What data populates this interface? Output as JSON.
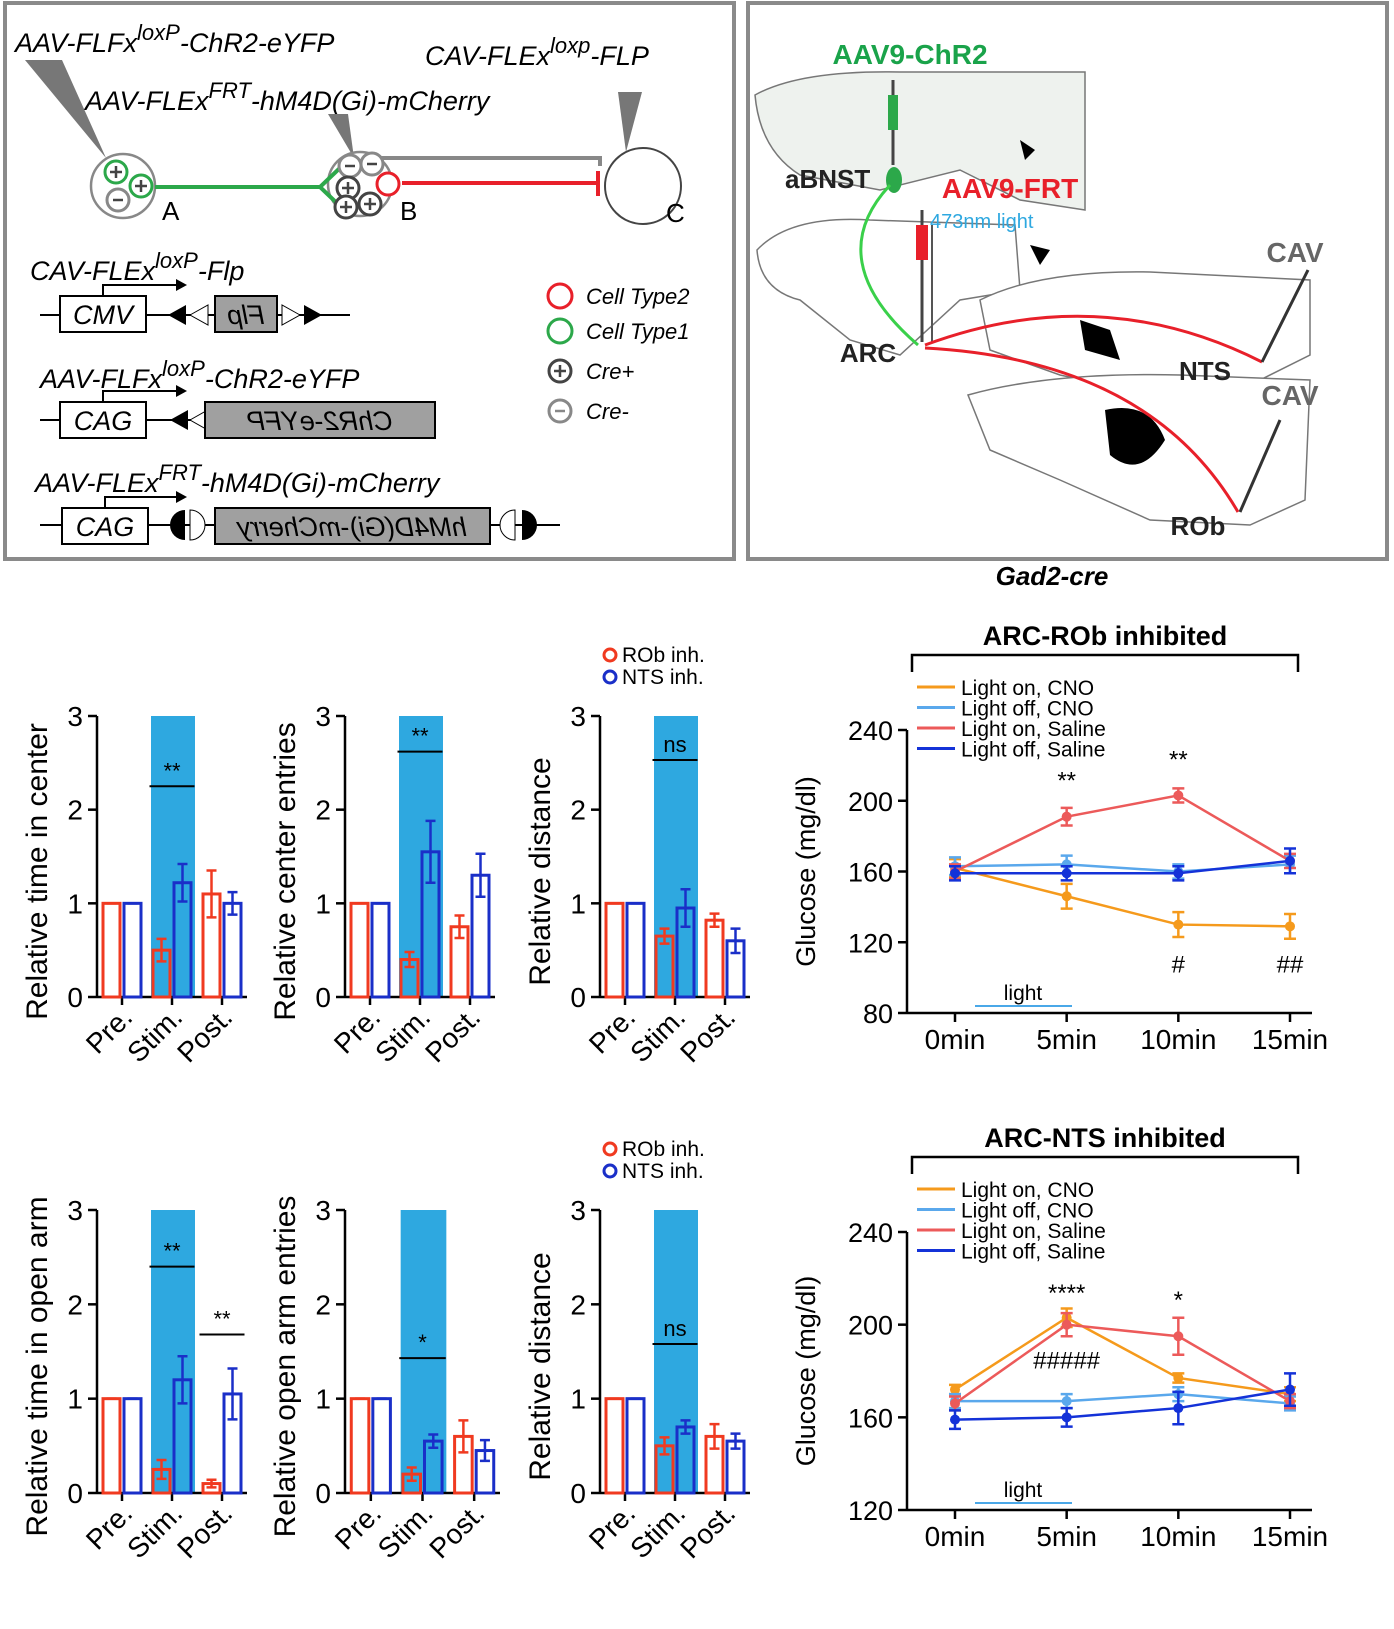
{
  "diagram": {
    "top_labels": [
      {
        "base": "AAV-FLFx",
        "sup": "loxP",
        "rest": "-ChR2-eYFP"
      },
      {
        "base": "CAV-FLEx",
        "sup": "loxp",
        "rest": "-FLP"
      },
      {
        "base": "AAV-FLEx",
        "sup": "FRT",
        "rest": "-hM4D(Gi)-mCherry"
      }
    ],
    "nodes": [
      "A",
      "B",
      "C"
    ],
    "constructs": [
      {
        "title": {
          "base": "CAV-FLEx",
          "sup": "loxP",
          "rest": "-Flp"
        },
        "promoter": "CMV",
        "gene": "Flp"
      },
      {
        "title": {
          "base": "AAV-FLFx",
          "sup": "loxP",
          "rest": "-ChR2-eYFP"
        },
        "promoter": "CAG",
        "gene": "ChR2-eYFP"
      },
      {
        "title": {
          "base": "AAV-FLEx",
          "sup": "FRT",
          "rest": "-hM4D(Gi)-mCherry"
        },
        "promoter": "CAG",
        "gene": "hM4D(Gi)-mCherry"
      }
    ],
    "legend": [
      "Cell Type2",
      "Cell Type1",
      "Cre+",
      "Cre-"
    ],
    "brain": {
      "aav_chr2": "AAV9-ChR2",
      "abnst": "aBNST",
      "aav_frt": "AAV9-FRT",
      "light": "473nm light",
      "cav": [
        "CAV",
        "CAV"
      ],
      "arc": "ARC",
      "nts": "NTS",
      "rob": "ROb"
    },
    "mouse_line": "Gad2-cre"
  },
  "chart_data": [
    {
      "type": "bar",
      "y_label": "Relative time in center",
      "categories": [
        "Pre.",
        "Stim.",
        "Post."
      ],
      "highlight": "Stim.",
      "ylim": [
        0,
        3
      ],
      "yticks": [
        0,
        1,
        2,
        3
      ],
      "legend": false,
      "series": [
        {
          "color": "#f03a20",
          "values": [
            1,
            0.5,
            1.1
          ],
          "errors": [
            0,
            0.12,
            0.25
          ]
        },
        {
          "color": "#1a2fc8",
          "values": [
            1,
            1.22,
            1.0
          ],
          "errors": [
            0,
            0.2,
            0.12
          ]
        }
      ],
      "annotations": [
        {
          "text": "**",
          "x": "Stim.",
          "y": 2.25
        }
      ]
    },
    {
      "type": "bar",
      "y_label": "Relative center entries",
      "categories": [
        "Pre.",
        "Stim.",
        "Post."
      ],
      "highlight": "Stim.",
      "ylim": [
        0,
        3
      ],
      "yticks": [
        0,
        1,
        2,
        3
      ],
      "legend": false,
      "series": [
        {
          "color": "#f03a20",
          "values": [
            1,
            0.4,
            0.75
          ],
          "errors": [
            0,
            0.08,
            0.12
          ]
        },
        {
          "color": "#1a2fc8",
          "values": [
            1,
            1.55,
            1.3
          ],
          "errors": [
            0,
            0.33,
            0.23
          ]
        }
      ],
      "annotations": [
        {
          "text": "**",
          "x": "Stim.",
          "y": 2.62
        }
      ]
    },
    {
      "type": "bar",
      "y_label": "Relative distance",
      "categories": [
        "Pre.",
        "Stim.",
        "Post."
      ],
      "highlight": "Stim.",
      "ylim": [
        0,
        3
      ],
      "yticks": [
        0,
        1,
        2,
        3
      ],
      "legend": true,
      "series": [
        {
          "name": "ROb inh.",
          "color": "#f03a20",
          "values": [
            1,
            0.65,
            0.82
          ],
          "errors": [
            0,
            0.08,
            0.07
          ]
        },
        {
          "name": "NTS inh.",
          "color": "#1a2fc8",
          "values": [
            1,
            0.95,
            0.6
          ],
          "errors": [
            0,
            0.2,
            0.13
          ]
        }
      ],
      "annotations": [
        {
          "text": "ns",
          "x": "Stim.",
          "y": 2.53
        }
      ]
    },
    {
      "type": "line",
      "title": "ARC-ROb inhibited",
      "y_label": "Glucose (mg/dl)",
      "categories": [
        "0min",
        "5min",
        "10min",
        "15min"
      ],
      "ylim": [
        80,
        240
      ],
      "yticks": [
        80,
        120,
        160,
        200,
        240
      ],
      "light_label": "light",
      "series": [
        {
          "name": "Light on, CNO",
          "color": "#f59a1c",
          "values": [
            162,
            146,
            130,
            129
          ],
          "errors": [
            5,
            7,
            7,
            7
          ]
        },
        {
          "name": "Light off, CNO",
          "color": "#5aa8ec",
          "values": [
            163,
            164,
            160,
            164
          ],
          "errors": [
            5,
            5,
            4,
            5
          ]
        },
        {
          "name": "Light on, Saline",
          "color": "#ec5a5a",
          "values": [
            160,
            191,
            203,
            166
          ],
          "errors": [
            4,
            5,
            4,
            4
          ]
        },
        {
          "name": "Light off, Saline",
          "color": "#1432d8",
          "values": [
            159,
            159,
            159,
            166
          ],
          "errors": [
            4,
            4,
            4,
            7
          ]
        }
      ],
      "annotations": [
        {
          "text": "**",
          "x": "5min",
          "y": 212
        },
        {
          "text": "**",
          "x": "10min",
          "y": 224
        },
        {
          "text": "#",
          "x": "10min",
          "y": 108
        },
        {
          "text": "##",
          "x": "15min",
          "y": 108
        }
      ]
    },
    {
      "type": "bar",
      "y_label": "Relative time in open arm",
      "categories": [
        "Pre.",
        "Stim.",
        "Post."
      ],
      "highlight": "Stim.",
      "ylim": [
        0,
        3
      ],
      "yticks": [
        0,
        1,
        2,
        3
      ],
      "legend": false,
      "series": [
        {
          "color": "#f03a20",
          "values": [
            1,
            0.25,
            0.1
          ],
          "errors": [
            0,
            0.1,
            0.04
          ]
        },
        {
          "color": "#1a2fc8",
          "values": [
            1,
            1.2,
            1.05
          ],
          "errors": [
            0,
            0.25,
            0.27
          ]
        }
      ],
      "annotations": [
        {
          "text": "**",
          "x": "Stim.",
          "y": 2.4
        },
        {
          "text": "**",
          "x": "Post.",
          "y": 1.68
        }
      ]
    },
    {
      "type": "bar",
      "y_label": "Relative open arm entries",
      "categories": [
        "Pre.",
        "Stim.",
        "Post."
      ],
      "highlight": "Stim.",
      "ylim": [
        0,
        3
      ],
      "yticks": [
        0,
        1,
        2,
        3
      ],
      "legend": false,
      "series": [
        {
          "color": "#f03a20",
          "values": [
            1,
            0.2,
            0.6
          ],
          "errors": [
            0,
            0.07,
            0.17
          ]
        },
        {
          "color": "#1a2fc8",
          "values": [
            1,
            0.55,
            0.45
          ],
          "errors": [
            0,
            0.07,
            0.11
          ]
        }
      ],
      "annotations": [
        {
          "text": "*",
          "x": "Stim.",
          "y": 1.43
        }
      ]
    },
    {
      "type": "bar",
      "y_label": "Relative distance",
      "categories": [
        "Pre.",
        "Stim.",
        "Post."
      ],
      "highlight": "Stim.",
      "ylim": [
        0,
        3
      ],
      "yticks": [
        0,
        1,
        2,
        3
      ],
      "legend": true,
      "series": [
        {
          "name": "ROb inh.",
          "color": "#f03a20",
          "values": [
            1,
            0.5,
            0.6
          ],
          "errors": [
            0,
            0.09,
            0.13
          ]
        },
        {
          "name": "NTS inh.",
          "color": "#1a2fc8",
          "values": [
            1,
            0.7,
            0.55
          ],
          "errors": [
            0,
            0.07,
            0.08
          ]
        }
      ],
      "annotations": [
        {
          "text": "ns",
          "x": "Stim.",
          "y": 1.58
        }
      ]
    },
    {
      "type": "line",
      "title": "ARC-NTS inhibited",
      "y_label": "Glucose (mg/dl)",
      "categories": [
        "0min",
        "5min",
        "10min",
        "15min"
      ],
      "ylim": [
        120,
        240
      ],
      "yticks": [
        120,
        160,
        200,
        240
      ],
      "light_label": "light",
      "series": [
        {
          "name": "Light on, CNO",
          "color": "#f59a1c",
          "values": [
            172,
            203,
            177,
            170
          ],
          "errors": [
            2,
            4,
            2,
            3
          ]
        },
        {
          "name": "Light off, CNO",
          "color": "#5aa8ec",
          "values": [
            167,
            167,
            170,
            166
          ],
          "errors": [
            3,
            3,
            3,
            3
          ]
        },
        {
          "name": "Light on, Saline",
          "color": "#ec5a5a",
          "values": [
            166,
            200,
            195,
            167
          ],
          "errors": [
            3,
            5,
            8,
            3
          ]
        },
        {
          "name": "Light off, Saline",
          "color": "#1432d8",
          "values": [
            159,
            160,
            164,
            172
          ],
          "errors": [
            4,
            4,
            7,
            7
          ]
        }
      ],
      "annotations": [
        {
          "text": "****",
          "x": "5min",
          "y": 214
        },
        {
          "text": "*",
          "x": "10min",
          "y": 211
        },
        {
          "text": "#####",
          "x": "5min",
          "y": 185
        }
      ]
    }
  ]
}
